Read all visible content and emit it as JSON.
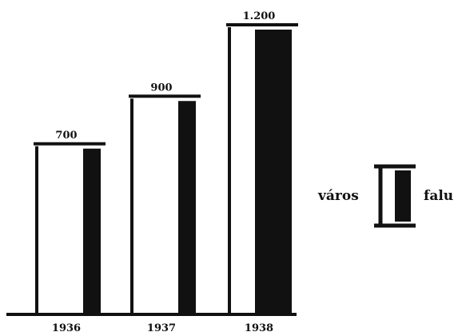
{
  "chart_data": {
    "type": "bar",
    "categories": [
      "1936",
      "1937",
      "1938"
    ],
    "values": [
      700,
      900,
      1200
    ],
    "value_labels": [
      "700",
      "900",
      "1.200"
    ],
    "title": "",
    "xlabel": "",
    "ylabel": "",
    "ylim": [
      0,
      1200
    ],
    "grid": false,
    "series": [
      {
        "name": "város"
      },
      {
        "name": "falu"
      }
    ],
    "legend": {
      "position": "right",
      "left_label": "város",
      "right_label": "falu"
    },
    "colors": {
      "outline": "#111111",
      "falu_fill": "#111111",
      "varos_fill": "#ffffff"
    }
  }
}
